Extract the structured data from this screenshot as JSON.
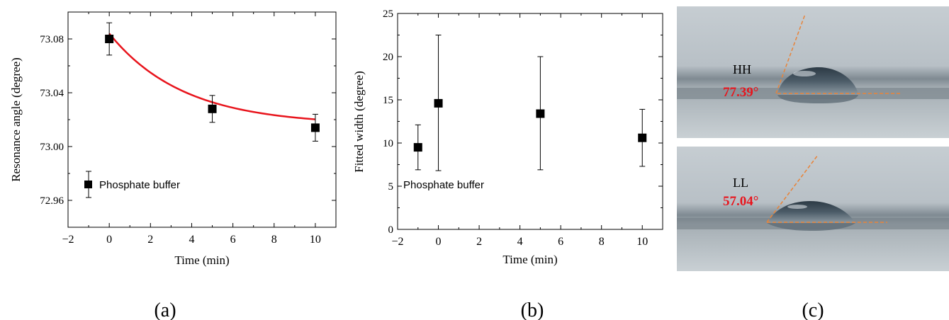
{
  "charts": [
    {
      "type": "scatter",
      "title": "",
      "xlabel": "Time (min)",
      "ylabel": "Resonance angle (degree)",
      "xlim": [
        -2,
        11
      ],
      "ylim": [
        72.94,
        73.1
      ],
      "xticks": [
        -2,
        0,
        2,
        4,
        6,
        8,
        10
      ],
      "yticks": [
        72.96,
        73.0,
        73.04,
        73.08
      ],
      "ytick_labels": [
        "72.96",
        "73.00",
        "73.04",
        "73.08"
      ],
      "series": [
        {
          "name": "Phosphate buffer",
          "x": [
            0,
            5,
            10
          ],
          "y": [
            73.08,
            73.028,
            73.014
          ],
          "yerr": [
            0.012,
            0.01,
            0.01
          ]
        }
      ],
      "legend": {
        "label": "Phosphate buffer",
        "placement": "bottom-left"
      },
      "fit_curve": {
        "type": "exponential-decay",
        "color": "#e8141c",
        "plateau": 73.016,
        "amplitude": 0.068,
        "tau": 3.6,
        "x_range": [
          0,
          10
        ]
      },
      "panel_label": "(a)"
    },
    {
      "type": "scatter",
      "title": "",
      "xlabel": "Time (min)",
      "ylabel": "Fitted width (degree)",
      "xlim": [
        -2,
        11
      ],
      "ylim": [
        0,
        25
      ],
      "xticks": [
        -2,
        0,
        2,
        4,
        6,
        8,
        10
      ],
      "yticks": [
        0,
        5,
        10,
        15,
        20,
        25
      ],
      "ytick_labels": [
        "0",
        "5",
        "10",
        "15",
        "20",
        "25"
      ],
      "series": [
        {
          "name": "Phosphate buffer",
          "x": [
            -1,
            0,
            5,
            10
          ],
          "y": [
            9.5,
            14.6,
            13.4,
            10.6
          ],
          "yerr_low": [
            2.6,
            7.8,
            6.5,
            3.3
          ],
          "yerr_high": [
            2.6,
            7.9,
            6.6,
            3.3
          ]
        }
      ],
      "legend": {
        "label": "Phosphate buffer",
        "placement": "bottom-left"
      },
      "panel_label": "(b)"
    }
  ],
  "images": [
    {
      "label": "HH",
      "angle": "77.39°"
    },
    {
      "label": "LL",
      "angle": "57.04°"
    }
  ],
  "image_panel_label": "(c)",
  "colors": {
    "angle_text": "#e8141c",
    "tangent_line": "#e8843a"
  }
}
